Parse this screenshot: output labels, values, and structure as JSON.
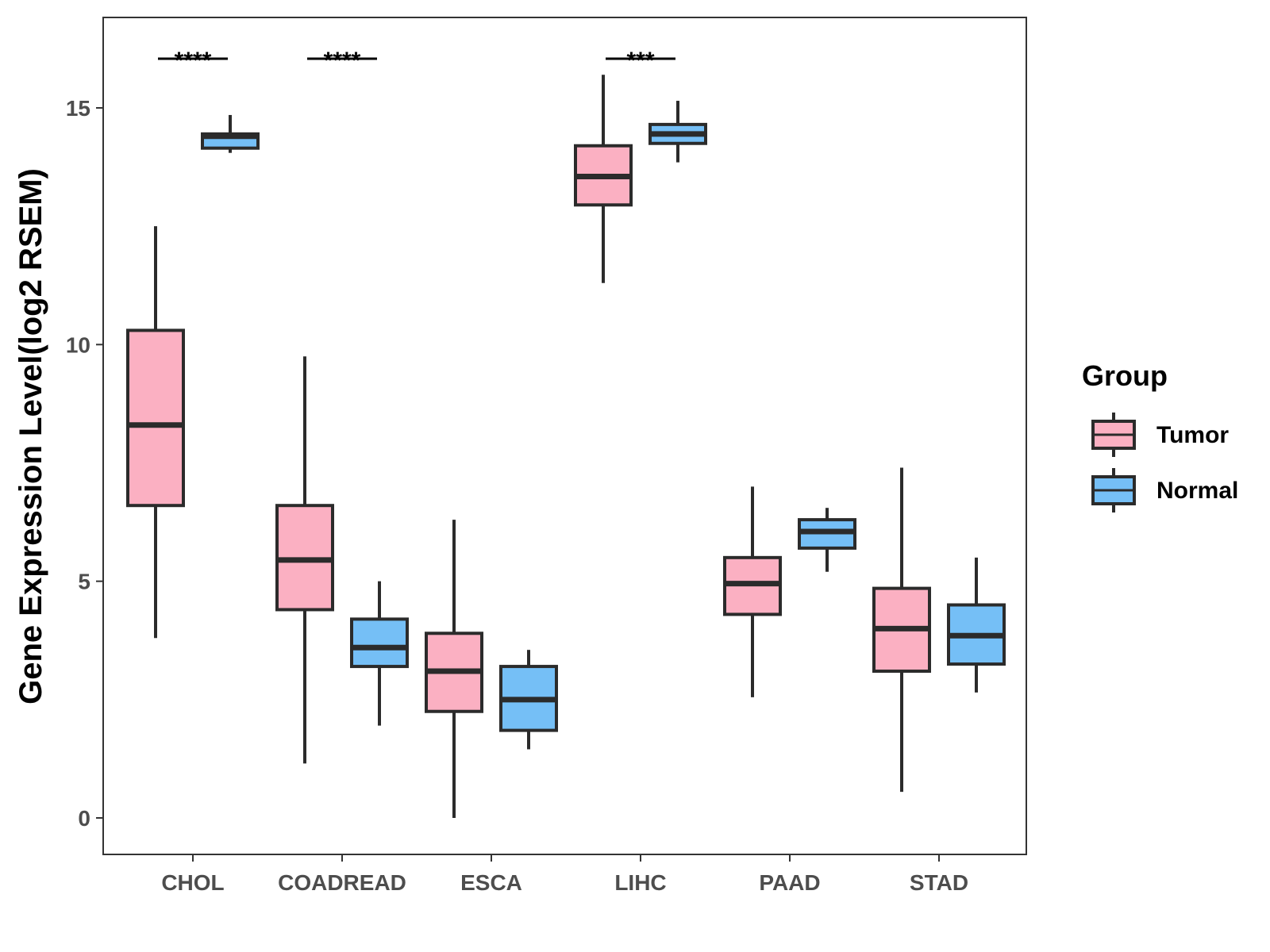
{
  "chart_data": {
    "type": "boxplot",
    "ylabel": "Gene Expression Level(log2 RSEM)",
    "xlabel": "",
    "ylim": [
      -0.8,
      16.9
    ],
    "yticks": [
      0,
      5,
      10,
      15
    ],
    "categories": [
      "CHOL",
      "COADREAD",
      "ESCA",
      "LIHC",
      "PAAD",
      "STAD"
    ],
    "legend": {
      "title": "Group",
      "position": "right",
      "entries": [
        {
          "name": "Tumor",
          "color": "#FBB0C2"
        },
        {
          "name": "Normal",
          "color": "#75BFF6"
        }
      ]
    },
    "series": [
      {
        "name": "Tumor",
        "color": "#FBB0C2",
        "boxes": [
          {
            "min": 3.8,
            "q1": 6.6,
            "median": 8.3,
            "q3": 10.3,
            "max": 12.5
          },
          {
            "min": 1.15,
            "q1": 4.4,
            "median": 5.45,
            "q3": 6.6,
            "max": 9.75
          },
          {
            "min": 0.0,
            "q1": 2.25,
            "median": 3.1,
            "q3": 3.9,
            "max": 6.3
          },
          {
            "min": 11.3,
            "q1": 12.95,
            "median": 13.55,
            "q3": 14.2,
            "max": 15.7
          },
          {
            "min": 2.55,
            "q1": 4.3,
            "median": 4.95,
            "q3": 5.5,
            "max": 7.0
          },
          {
            "min": 0.55,
            "q1": 3.1,
            "median": 4.0,
            "q3": 4.85,
            "max": 7.4
          }
        ]
      },
      {
        "name": "Normal",
        "color": "#75BFF6",
        "boxes": [
          {
            "min": 14.05,
            "q1": 14.15,
            "median": 14.4,
            "q3": 14.45,
            "max": 14.85
          },
          {
            "min": 1.95,
            "q1": 3.2,
            "median": 3.6,
            "q3": 4.2,
            "max": 5.0
          },
          {
            "min": 1.45,
            "q1": 1.85,
            "median": 2.5,
            "q3": 3.2,
            "max": 3.55
          },
          {
            "min": 13.85,
            "q1": 14.25,
            "median": 14.45,
            "q3": 14.65,
            "max": 15.15
          },
          {
            "min": 5.2,
            "q1": 5.7,
            "median": 6.05,
            "q3": 6.3,
            "max": 6.55
          },
          {
            "min": 2.65,
            "q1": 3.25,
            "median": 3.85,
            "q3": 4.5,
            "max": 5.5
          }
        ]
      }
    ],
    "significance": [
      {
        "category": "CHOL",
        "label": "****"
      },
      {
        "category": "COADREAD",
        "label": "****"
      },
      {
        "category": "LIHC",
        "label": "***"
      }
    ]
  }
}
